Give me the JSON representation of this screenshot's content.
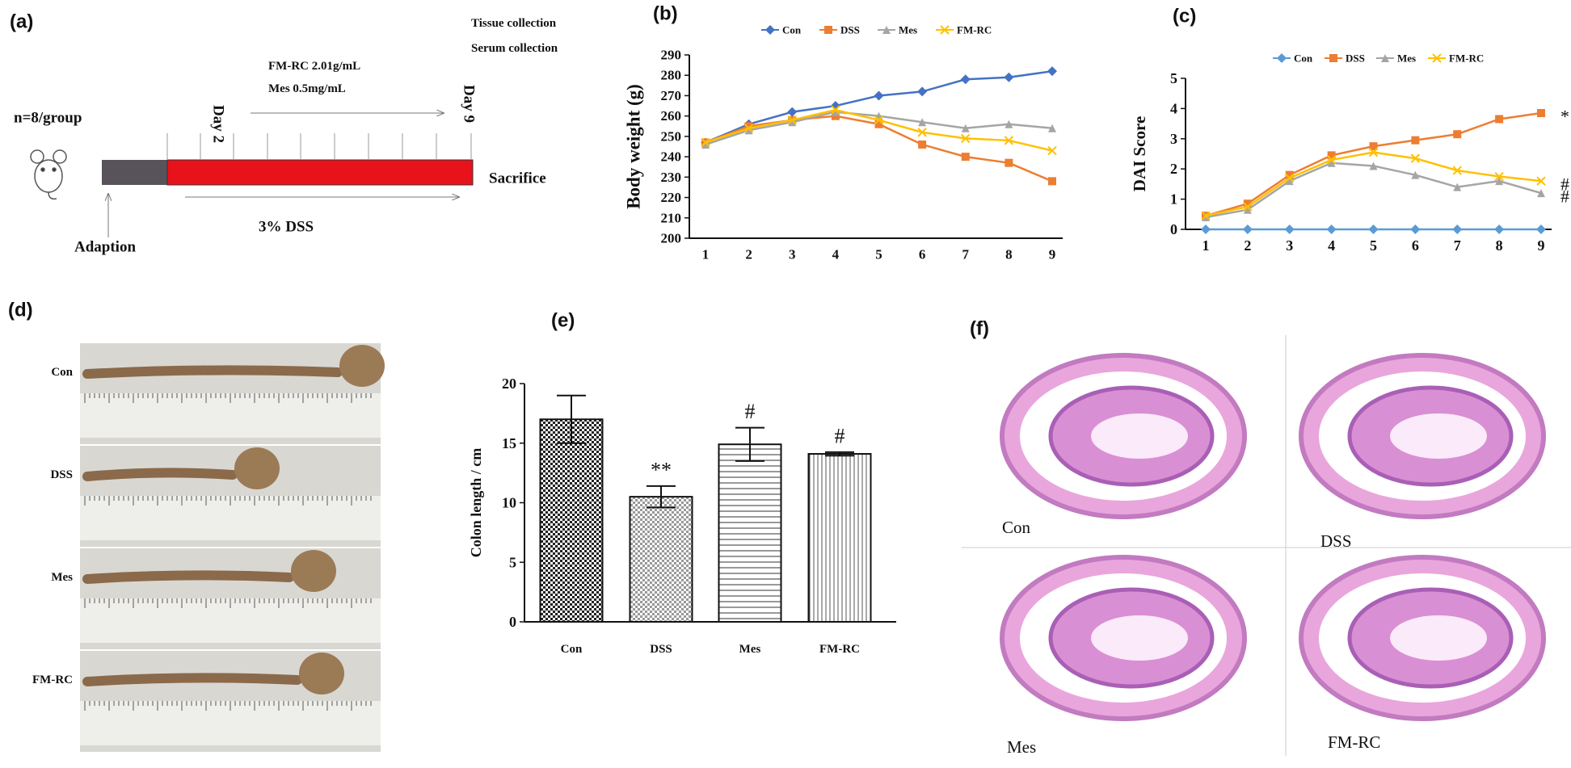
{
  "panel_a": {
    "label": "(a)",
    "group": "n=8/group",
    "day_start": "Day 2",
    "day_end": "Day 9",
    "treatments": [
      "FM-RC  2.01g/mL",
      "Mes  0.5mg/mL"
    ],
    "collections": [
      "Tissue collection",
      "Serum collection"
    ],
    "endpoint": "Sacrifice",
    "model": "3% DSS",
    "acclimation": "Adaption"
  },
  "panel_d": {
    "label": "(d)",
    "groups": [
      "Con",
      "DSS",
      "Mes",
      "FM-RC"
    ]
  },
  "panel_f": {
    "label": "(f)",
    "groups": [
      "Con",
      "DSS",
      "Mes",
      "FM-RC"
    ]
  },
  "chart_data": [
    {
      "type": "line",
      "title": "(b)",
      "y_label": "Body weight (g)",
      "categories": [
        "1",
        "2",
        "3",
        "4",
        "5",
        "6",
        "7",
        "8",
        "9"
      ],
      "series": [
        {
          "name": "Con",
          "color": "#4472c4",
          "marker": "diamond",
          "values": [
            247,
            256,
            262,
            265,
            270,
            272,
            278,
            279,
            282
          ]
        },
        {
          "name": "DSS",
          "color": "#ed7d31",
          "marker": "square",
          "values": [
            247,
            255,
            258,
            260,
            256,
            246,
            240,
            237,
            228
          ]
        },
        {
          "name": "Mes",
          "color": "#a5a5a5",
          "marker": "triangle",
          "values": [
            246,
            253,
            257,
            262,
            260,
            257,
            254,
            256,
            254
          ]
        },
        {
          "name": "FM-RC",
          "color": "#ffc000",
          "marker": "cross",
          "values": [
            247,
            254,
            258,
            263,
            258,
            252,
            249,
            248,
            243
          ]
        }
      ],
      "ylim": [
        200,
        290
      ],
      "yticks": [
        200,
        210,
        220,
        230,
        240,
        250,
        260,
        270,
        280,
        290
      ],
      "legend": "top"
    },
    {
      "type": "line",
      "title": "(c)",
      "y_label": "DAI Score",
      "categories": [
        "1",
        "2",
        "3",
        "4",
        "5",
        "6",
        "7",
        "8",
        "9"
      ],
      "series": [
        {
          "name": "Con",
          "color": "#5b9bd5",
          "marker": "diamond",
          "values": [
            0,
            0,
            0,
            0,
            0,
            0,
            0,
            0,
            0
          ]
        },
        {
          "name": "DSS",
          "color": "#ed7d31",
          "marker": "square",
          "values": [
            0.45,
            0.85,
            1.8,
            2.45,
            2.75,
            2.95,
            3.15,
            3.65,
            3.85
          ]
        },
        {
          "name": "Mes",
          "color": "#a5a5a5",
          "marker": "triangle",
          "values": [
            0.4,
            0.65,
            1.6,
            2.2,
            2.1,
            1.8,
            1.4,
            1.6,
            1.2
          ]
        },
        {
          "name": "FM-RC",
          "color": "#ffc000",
          "marker": "cross",
          "values": [
            0.45,
            0.75,
            1.7,
            2.3,
            2.55,
            2.35,
            1.95,
            1.75,
            1.6
          ]
        }
      ],
      "ylim": [
        0,
        5
      ],
      "yticks": [
        0,
        1,
        2,
        3,
        4,
        5
      ],
      "legend": "top",
      "annotations": [
        {
          "series": "DSS",
          "text": "*"
        },
        {
          "series": "FM-RC",
          "text": "#"
        },
        {
          "series": "Mes",
          "text": "#"
        }
      ]
    },
    {
      "type": "bar",
      "title": "(e)",
      "y_label": "Colon length / cm",
      "categories": [
        "Con",
        "DSS",
        "Mes",
        "FM-RC"
      ],
      "values": [
        17,
        10.5,
        14.9,
        14.1
      ],
      "errors": [
        2,
        0.9,
        1.4,
        0.15
      ],
      "patterns": [
        "checker-dark",
        "checker-light",
        "horizontal",
        "vertical"
      ],
      "ylim": [
        0,
        20
      ],
      "yticks": [
        0,
        5,
        10,
        15,
        20
      ],
      "annotations": [
        {
          "category": "DSS",
          "text": "**"
        },
        {
          "category": "Mes",
          "text": "#"
        },
        {
          "category": "FM-RC",
          "text": "#"
        }
      ]
    }
  ]
}
